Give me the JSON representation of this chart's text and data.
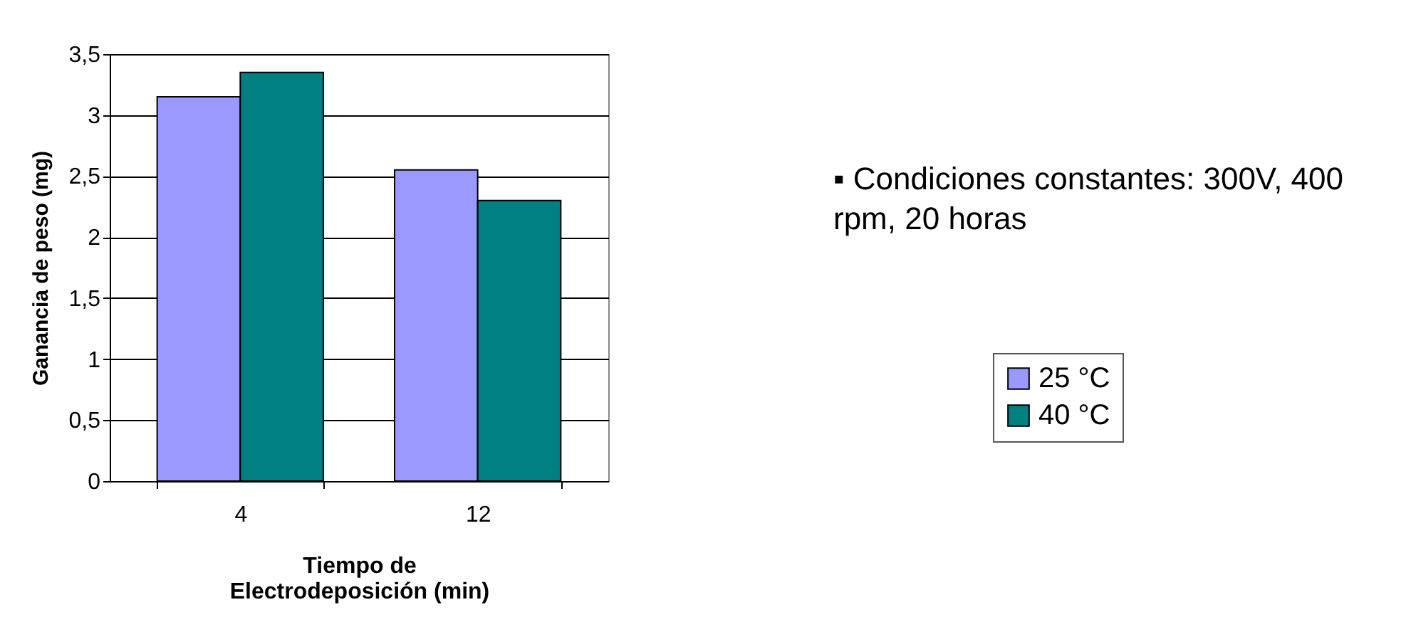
{
  "chart_data": {
    "type": "bar",
    "xlabel": "Tiempo de Electrodeposición (min)",
    "ylabel": "Ganancia de peso (mg)",
    "categories": [
      "4",
      "12"
    ],
    "series": [
      {
        "name": "25 °C",
        "color": "#9999ff",
        "values": [
          3.15,
          2.55
        ]
      },
      {
        "name": "40 °C",
        "color": "#008080",
        "values": [
          3.35,
          2.3
        ]
      }
    ],
    "ylim": [
      0,
      3.5
    ],
    "yticks": [
      {
        "value": 0,
        "label": "0"
      },
      {
        "value": 0.5,
        "label": "0,5"
      },
      {
        "value": 1,
        "label": "1"
      },
      {
        "value": 1.5,
        "label": "1,5"
      },
      {
        "value": 2,
        "label": "2"
      },
      {
        "value": 2.5,
        "label": "2,5"
      },
      {
        "value": 3,
        "label": "3"
      },
      {
        "value": 3.5,
        "label": "3,5"
      }
    ],
    "grid": "y",
    "legend": "right",
    "annotations": [
      "▪ Condiciones constantes: 300V, 400 rpm, 20 horas"
    ]
  }
}
